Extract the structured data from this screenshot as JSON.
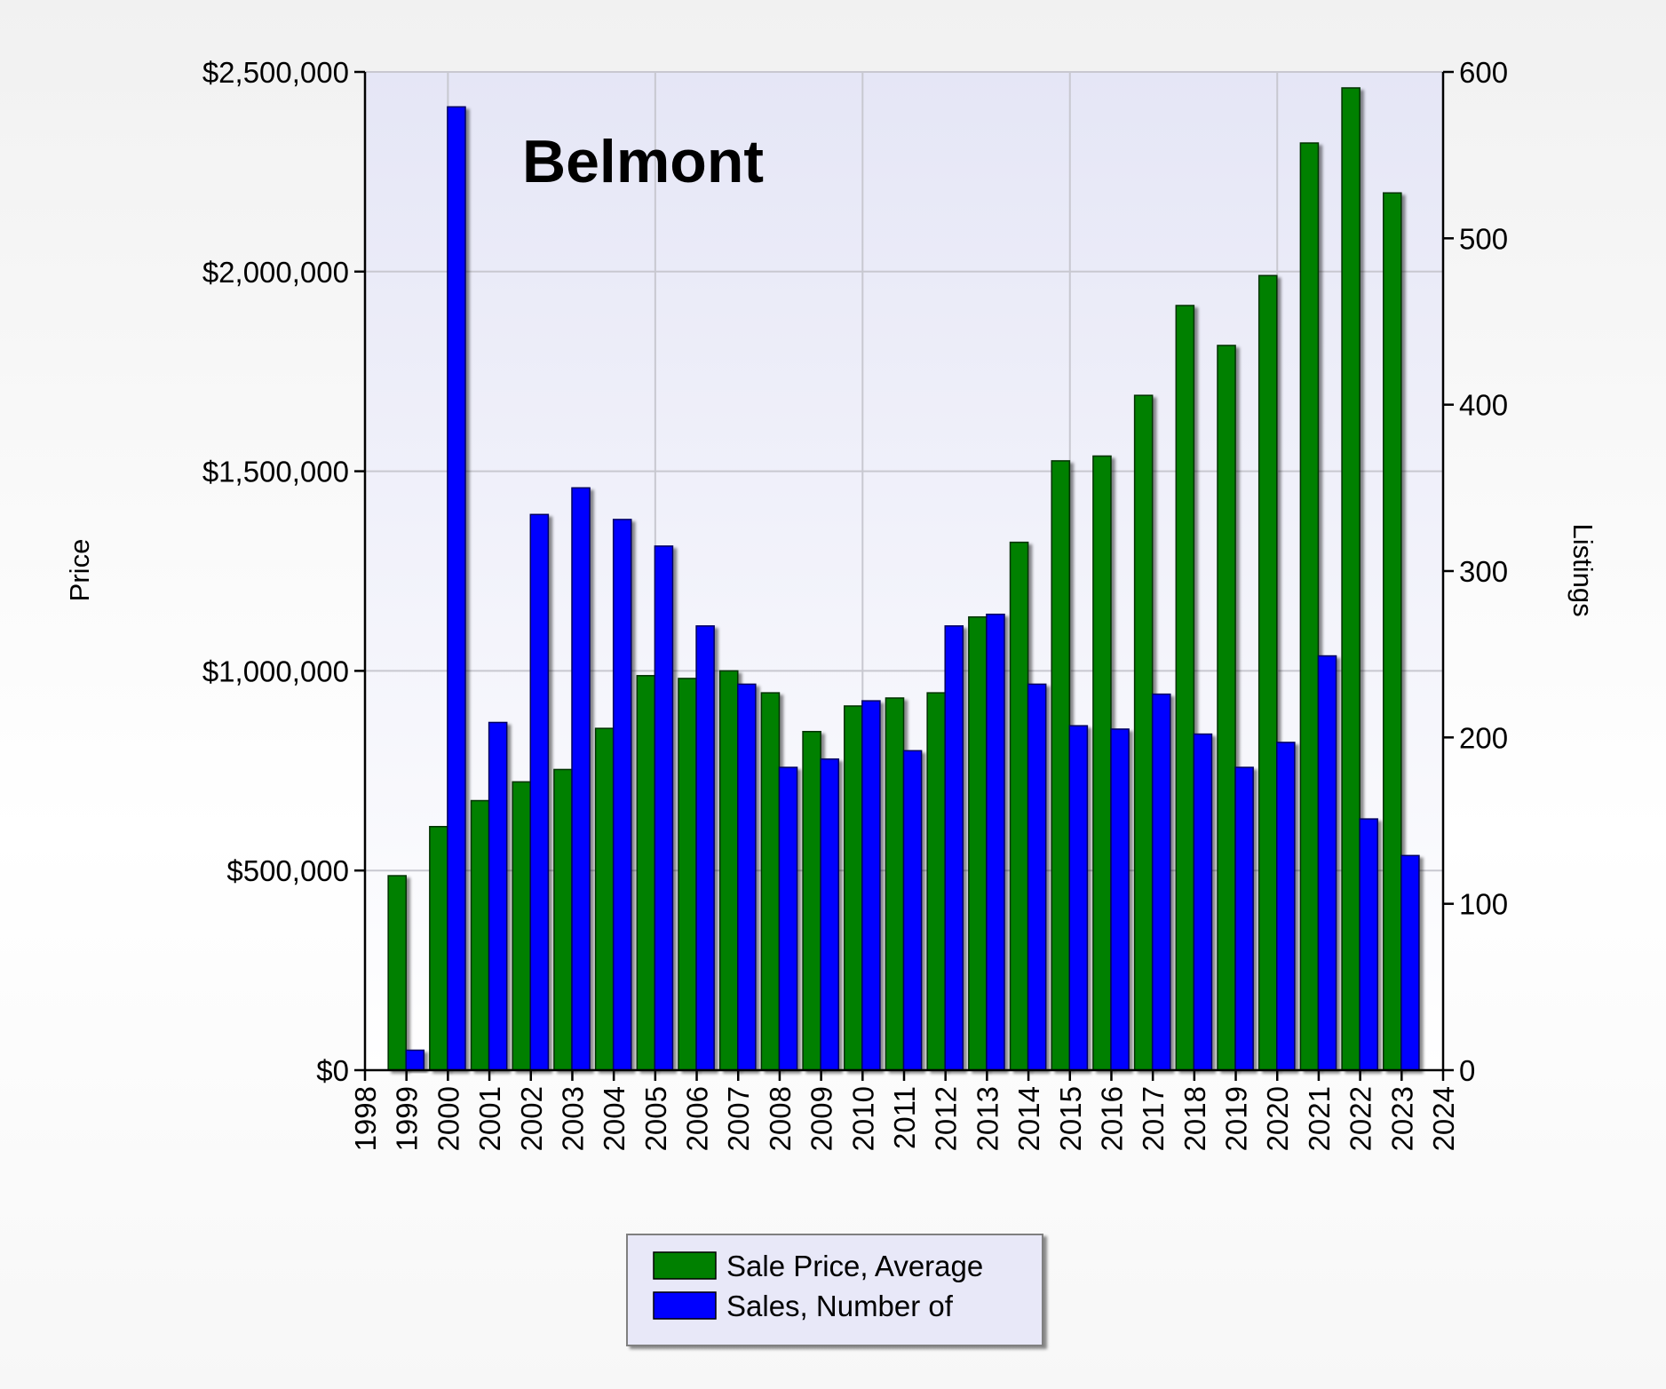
{
  "chart_data": {
    "type": "bar",
    "title": "Belmont",
    "categories": [
      "1999",
      "2000",
      "2001",
      "2002",
      "2003",
      "2004",
      "2005",
      "2006",
      "2007",
      "2008",
      "2009",
      "2010",
      "2011",
      "2012",
      "2013",
      "2014",
      "2015",
      "2016",
      "2017",
      "2018",
      "2019",
      "2020",
      "2021",
      "2022",
      "2023"
    ],
    "x_tick_labels": [
      "1998",
      "1999",
      "2000",
      "2001",
      "2002",
      "2003",
      "2004",
      "2005",
      "2006",
      "2007",
      "2008",
      "2009",
      "2010",
      "2011",
      "2012",
      "2013",
      "2014",
      "2015",
      "2016",
      "2017",
      "2018",
      "2019",
      "2020",
      "2021",
      "2022",
      "2023",
      "2024"
    ],
    "series": [
      {
        "name": "Sale Price, Average",
        "axis": "left",
        "color": "#008000",
        "values": [
          487000,
          610000,
          675000,
          722000,
          753000,
          856000,
          988000,
          981000,
          1000000,
          945000,
          848000,
          912000,
          932000,
          945000,
          1135000,
          1322000,
          1526000,
          1538000,
          1690000,
          1915000,
          1815000,
          1990000,
          2322000,
          2460000,
          2197000
        ]
      },
      {
        "name": "Sales, Number of",
        "axis": "right",
        "color": "#0000ff",
        "values": [
          12,
          579,
          209,
          334,
          350,
          331,
          315,
          267,
          232,
          182,
          187,
          222,
          192,
          267,
          274,
          232,
          207,
          205,
          226,
          202,
          182,
          197,
          249,
          151,
          129
        ]
      }
    ],
    "ylabel": "Price",
    "y2label": "Listings",
    "ylim": [
      0,
      2500000
    ],
    "y2lim": [
      0,
      600
    ],
    "y_ticks": [
      "$0",
      "$500,000",
      "$1,000,000",
      "$1,500,000",
      "$2,000,000",
      "$2,500,000"
    ],
    "y2_ticks": [
      "0",
      "100",
      "200",
      "300",
      "400",
      "500",
      "600"
    ],
    "grid": true,
    "legend_position": "bottom-center",
    "colors": {
      "plot_bg_top": "#e6e7f5",
      "plot_bg_bottom": "#ffffff",
      "grid": "#c8c8d0"
    }
  }
}
